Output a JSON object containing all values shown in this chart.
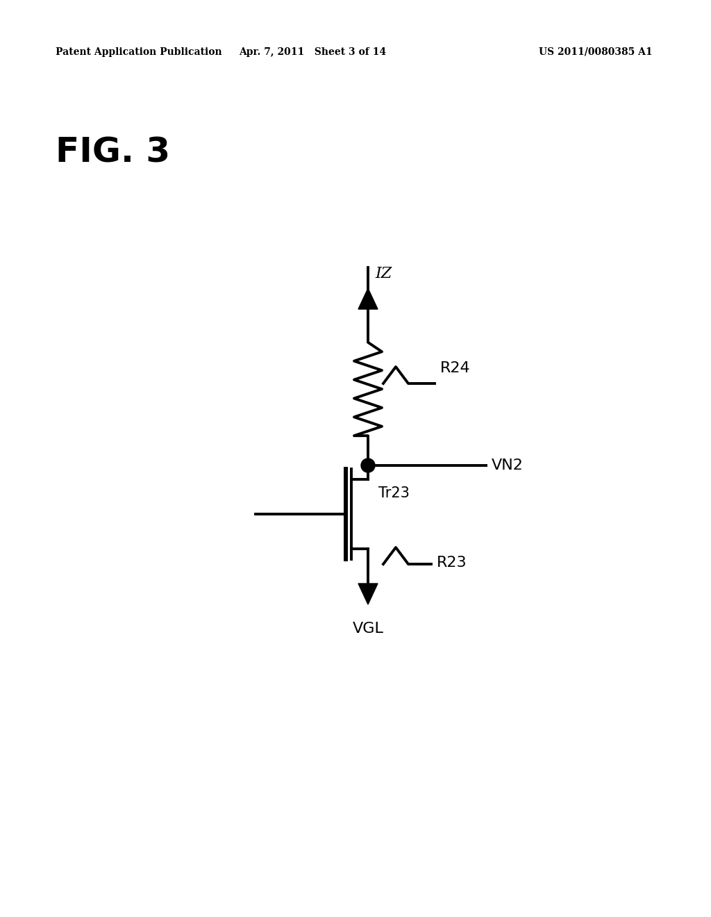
{
  "bg_color": "#ffffff",
  "line_color": "#000000",
  "header_left": "Patent Application Publication",
  "header_mid": "Apr. 7, 2011   Sheet 3 of 14",
  "header_right": "US 2011/0080385 A1",
  "fig_label": "FIG. 3",
  "label_IZ": "IZ",
  "label_R24": "R24",
  "label_VN2": "VN2",
  "label_Tr23": "Tr23",
  "label_R23": "R23",
  "label_VGL": "VGL"
}
